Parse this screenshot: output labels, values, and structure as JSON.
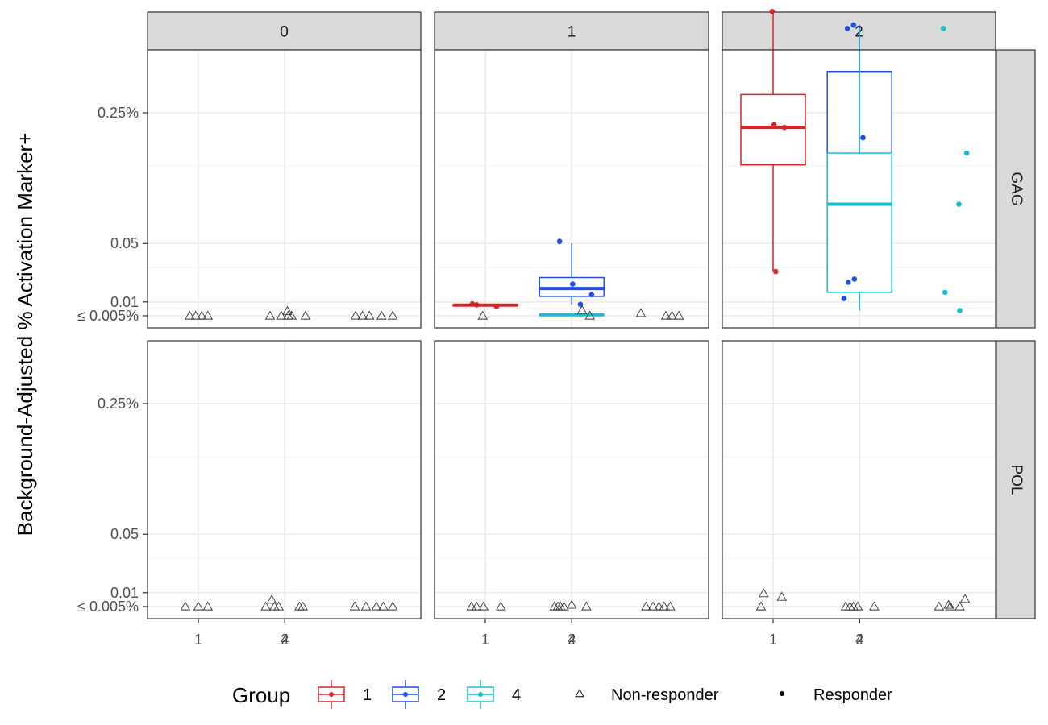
{
  "chart_data": {
    "type": "box",
    "ylabel": "Background-Adjusted % Activation Marker+",
    "xlabel": "",
    "x_categories": [
      "1",
      "2",
      "4"
    ],
    "y_scale": "sqrt",
    "y_ticks": [
      {
        "value": 0.005,
        "label": "≤ 0.005%"
      },
      {
        "value": 0.01,
        "label": "0.01"
      },
      {
        "value": 0.05,
        "label": "0.05"
      },
      {
        "value": 0.25,
        "label": "0.25%"
      }
    ],
    "ylim": [
      0.003,
      0.6
    ],
    "column_facet_labels": [
      "0",
      "1",
      "2"
    ],
    "row_facet_labels": [
      "GAG",
      "POL"
    ],
    "grid": true,
    "legend_position": "bottom",
    "legend": {
      "color_title": "Group",
      "groups": [
        {
          "label": "1",
          "color": "#d62728"
        },
        {
          "label": "2",
          "color": "#1f4fe6"
        },
        {
          "label": "4",
          "color": "#17becf"
        }
      ],
      "shapes": [
        {
          "label": "Non-responder",
          "shape": "open-triangle"
        },
        {
          "label": "Responder",
          "shape": "filled-circle"
        }
      ]
    },
    "panels": [
      {
        "column": "0",
        "row": "GAG",
        "boxes": [],
        "points": [
          {
            "group": "1",
            "x": 0.9,
            "y": 0.005,
            "responder": false
          },
          {
            "group": "1",
            "x": 0.97,
            "y": 0.005,
            "responder": false
          },
          {
            "group": "1",
            "x": 1.04,
            "y": 0.005,
            "responder": false
          },
          {
            "group": "1",
            "x": 1.11,
            "y": 0.005,
            "responder": false
          },
          {
            "group": "2",
            "x": 1.83,
            "y": 0.005,
            "responder": false
          },
          {
            "group": "2",
            "x": 1.96,
            "y": 0.005,
            "responder": false
          },
          {
            "group": "2",
            "x": 2.03,
            "y": 0.0065,
            "responder": false
          },
          {
            "group": "2",
            "x": 2.04,
            "y": 0.005,
            "responder": false
          },
          {
            "group": "2",
            "x": 2.08,
            "y": 0.005,
            "responder": false
          },
          {
            "group": "2",
            "x": 2.24,
            "y": 0.005,
            "responder": false
          },
          {
            "group": "4",
            "x": 3.82,
            "y": 0.005,
            "responder": false
          },
          {
            "group": "4",
            "x": 3.9,
            "y": 0.005,
            "responder": false
          },
          {
            "group": "4",
            "x": 3.98,
            "y": 0.005,
            "responder": false
          },
          {
            "group": "4",
            "x": 4.12,
            "y": 0.005,
            "responder": false
          },
          {
            "group": "4",
            "x": 4.25,
            "y": 0.005,
            "responder": false
          }
        ]
      },
      {
        "column": "1",
        "row": "GAG",
        "boxes": [
          {
            "group": "1",
            "min": 0.0082,
            "q1": 0.0085,
            "median": 0.0087,
            "q3": 0.0089,
            "max": 0.0092
          },
          {
            "group": "2",
            "min": 0.009,
            "q1": 0.0125,
            "median": 0.0165,
            "q3": 0.023,
            "max": 0.05
          },
          {
            "group": "4",
            "min": 0.0052,
            "q1": 0.0052,
            "median": 0.0053,
            "q3": 0.0054,
            "max": 0.0054
          }
        ],
        "points": [
          {
            "group": "1",
            "x": 0.85,
            "y": 0.0092,
            "responder": true
          },
          {
            "group": "1",
            "x": 0.9,
            "y": 0.0088,
            "responder": true
          },
          {
            "group": "1",
            "x": 0.97,
            "y": 0.005,
            "responder": false
          },
          {
            "group": "1",
            "x": 1.13,
            "y": 0.0082,
            "responder": true
          },
          {
            "group": "2",
            "x": 1.86,
            "y": 0.052,
            "responder": true
          },
          {
            "group": "2",
            "x": 2.01,
            "y": 0.019,
            "responder": true
          },
          {
            "group": "2",
            "x": 2.1,
            "y": 0.009,
            "responder": true
          },
          {
            "group": "2",
            "x": 2.12,
            "y": 0.0068,
            "responder": false
          },
          {
            "group": "2",
            "x": 2.21,
            "y": 0.005,
            "responder": false
          },
          {
            "group": "2",
            "x": 2.23,
            "y": 0.0133,
            "responder": true
          },
          {
            "group": "4",
            "x": 3.8,
            "y": 0.0058,
            "responder": false
          },
          {
            "group": "4",
            "x": 4.09,
            "y": 0.005,
            "responder": false
          },
          {
            "group": "4",
            "x": 4.16,
            "y": 0.005,
            "responder": false
          },
          {
            "group": "4",
            "x": 4.24,
            "y": 0.005,
            "responder": false
          }
        ]
      },
      {
        "column": "2",
        "row": "GAG",
        "boxes": [
          {
            "group": "1",
            "min": 0.027,
            "q1": 0.152,
            "median": 0.22,
            "q3": 0.29,
            "max": 0.51
          },
          {
            "group": "2",
            "min": 0.0115,
            "q1": 0.021,
            "median": 0.058,
            "q3": 0.345,
            "max": 0.47
          },
          {
            "group": "4",
            "min": 0.0067,
            "q1": 0.0145,
            "median": 0.094,
            "q3": 0.172,
            "max": 0.46
          }
        ],
        "points": [
          {
            "group": "1",
            "x": 0.99,
            "y": 0.51,
            "responder": true
          },
          {
            "group": "1",
            "x": 1.01,
            "y": 0.225,
            "responder": true
          },
          {
            "group": "1",
            "x": 1.03,
            "y": 0.027,
            "responder": true
          },
          {
            "group": "1",
            "x": 1.13,
            "y": 0.22,
            "responder": true
          },
          {
            "group": "2",
            "x": 1.82,
            "y": 0.0115,
            "responder": true
          },
          {
            "group": "2",
            "x": 1.86,
            "y": 0.46,
            "responder": true
          },
          {
            "group": "2",
            "x": 1.87,
            "y": 0.02,
            "responder": true
          },
          {
            "group": "2",
            "x": 1.93,
            "y": 0.47,
            "responder": true
          },
          {
            "group": "2",
            "x": 1.94,
            "y": 0.022,
            "responder": true
          },
          {
            "group": "2",
            "x": 2.04,
            "y": 0.2,
            "responder": true
          },
          {
            "group": "4",
            "x": 3.97,
            "y": 0.46,
            "responder": true
          },
          {
            "group": "4",
            "x": 3.99,
            "y": 0.0145,
            "responder": true
          },
          {
            "group": "4",
            "x": 4.15,
            "y": 0.094,
            "responder": true
          },
          {
            "group": "4",
            "x": 4.16,
            "y": 0.0067,
            "responder": true
          },
          {
            "group": "4",
            "x": 4.24,
            "y": 0.172,
            "responder": true
          }
        ]
      },
      {
        "column": "0",
        "row": "POL",
        "boxes": [],
        "points": [
          {
            "group": "1",
            "x": 0.85,
            "y": 0.005,
            "responder": false
          },
          {
            "group": "1",
            "x": 1.0,
            "y": 0.005,
            "responder": false
          },
          {
            "group": "1",
            "x": 1.11,
            "y": 0.005,
            "responder": false
          },
          {
            "group": "2",
            "x": 1.78,
            "y": 0.005,
            "responder": false
          },
          {
            "group": "2",
            "x": 1.85,
            "y": 0.0072,
            "responder": false
          },
          {
            "group": "2",
            "x": 1.88,
            "y": 0.005,
            "responder": false
          },
          {
            "group": "2",
            "x": 1.93,
            "y": 0.005,
            "responder": false
          },
          {
            "group": "2",
            "x": 2.17,
            "y": 0.005,
            "responder": false
          },
          {
            "group": "2",
            "x": 2.21,
            "y": 0.005,
            "responder": false
          },
          {
            "group": "4",
            "x": 3.81,
            "y": 0.005,
            "responder": false
          },
          {
            "group": "4",
            "x": 3.94,
            "y": 0.005,
            "responder": false
          },
          {
            "group": "4",
            "x": 4.06,
            "y": 0.005,
            "responder": false
          },
          {
            "group": "4",
            "x": 4.14,
            "y": 0.005,
            "responder": false
          },
          {
            "group": "4",
            "x": 4.25,
            "y": 0.005,
            "responder": false
          }
        ]
      },
      {
        "column": "1",
        "row": "POL",
        "boxes": [],
        "points": [
          {
            "group": "1",
            "x": 0.84,
            "y": 0.005,
            "responder": false
          },
          {
            "group": "1",
            "x": 0.9,
            "y": 0.005,
            "responder": false
          },
          {
            "group": "1",
            "x": 0.98,
            "y": 0.005,
            "responder": false
          },
          {
            "group": "1",
            "x": 1.18,
            "y": 0.005,
            "responder": false
          },
          {
            "group": "2",
            "x": 1.8,
            "y": 0.005,
            "responder": false
          },
          {
            "group": "2",
            "x": 1.84,
            "y": 0.005,
            "responder": false
          },
          {
            "group": "2",
            "x": 1.87,
            "y": 0.005,
            "responder": false
          },
          {
            "group": "2",
            "x": 1.91,
            "y": 0.005,
            "responder": false
          },
          {
            "group": "2",
            "x": 2.0,
            "y": 0.0055,
            "responder": false
          },
          {
            "group": "2",
            "x": 2.17,
            "y": 0.005,
            "responder": false
          },
          {
            "group": "4",
            "x": 3.86,
            "y": 0.005,
            "responder": false
          },
          {
            "group": "4",
            "x": 3.94,
            "y": 0.005,
            "responder": false
          },
          {
            "group": "4",
            "x": 4.01,
            "y": 0.005,
            "responder": false
          },
          {
            "group": "4",
            "x": 4.07,
            "y": 0.005,
            "responder": false
          },
          {
            "group": "4",
            "x": 4.14,
            "y": 0.005,
            "responder": false
          }
        ]
      },
      {
        "column": "2",
        "row": "POL",
        "boxes": [],
        "points": [
          {
            "group": "1",
            "x": 0.86,
            "y": 0.005,
            "responder": false
          },
          {
            "group": "1",
            "x": 0.89,
            "y": 0.0097,
            "responder": false
          },
          {
            "group": "1",
            "x": 1.1,
            "y": 0.0083,
            "responder": false
          },
          {
            "group": "2",
            "x": 1.84,
            "y": 0.005,
            "responder": false
          },
          {
            "group": "2",
            "x": 1.89,
            "y": 0.005,
            "responder": false
          },
          {
            "group": "2",
            "x": 1.93,
            "y": 0.005,
            "responder": false
          },
          {
            "group": "2",
            "x": 1.98,
            "y": 0.005,
            "responder": false
          },
          {
            "group": "2",
            "x": 2.17,
            "y": 0.005,
            "responder": false
          },
          {
            "group": "4",
            "x": 3.92,
            "y": 0.005,
            "responder": false
          },
          {
            "group": "4",
            "x": 4.03,
            "y": 0.0055,
            "responder": false
          },
          {
            "group": "4",
            "x": 4.05,
            "y": 0.005,
            "responder": false
          },
          {
            "group": "4",
            "x": 4.16,
            "y": 0.005,
            "responder": false
          },
          {
            "group": "4",
            "x": 4.22,
            "y": 0.0075,
            "responder": false
          }
        ]
      }
    ]
  }
}
